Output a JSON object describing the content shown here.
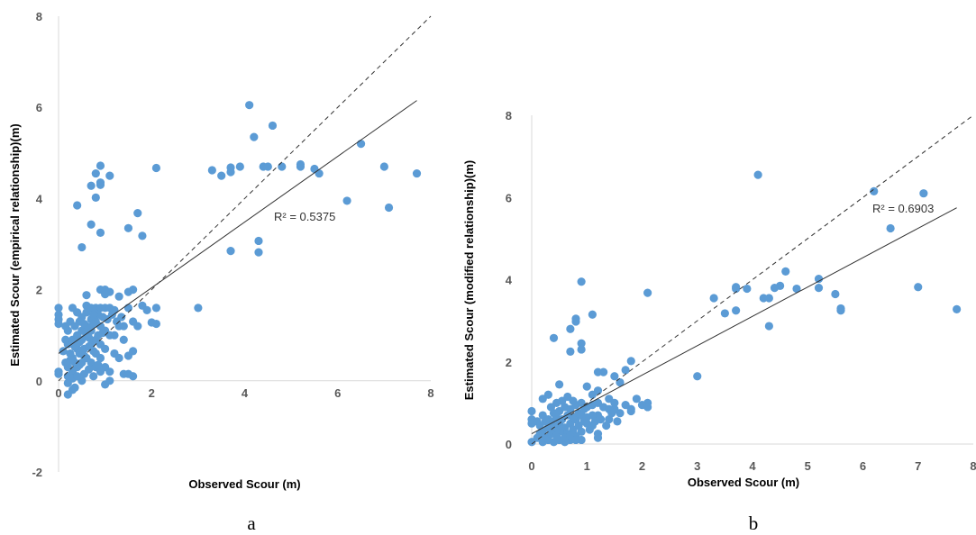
{
  "chart_data": [
    {
      "type": "scatter",
      "panel_label": "a",
      "xlabel": "Observed Scour (m)",
      "ylabel": "Estimated Scour (empirical relationship)(m)",
      "xlim": [
        0,
        8
      ],
      "ylim": [
        -2,
        8
      ],
      "xticks": [
        "0",
        "2",
        "4",
        "6",
        "8"
      ],
      "yticks": [
        "-2",
        "0",
        "2",
        "4",
        "6",
        "8"
      ],
      "annotation": "R² = 0.5375",
      "marker_color": "#5B9BD5",
      "lines": {
        "identity": [
          [
            0,
            0
          ],
          [
            8,
            8
          ]
        ],
        "trend": [
          [
            0,
            0.6
          ],
          [
            7.7,
            6.15
          ]
        ]
      },
      "points": [
        [
          4.1,
          6.05
        ],
        [
          4.6,
          5.6
        ],
        [
          4.2,
          5.35
        ],
        [
          6.5,
          5.2
        ],
        [
          0.9,
          4.72
        ],
        [
          2.1,
          4.67
        ],
        [
          3.3,
          4.62
        ],
        [
          3.5,
          4.5
        ],
        [
          3.7,
          4.58
        ],
        [
          3.7,
          4.68
        ],
        [
          3.9,
          4.7
        ],
        [
          4.4,
          4.7
        ],
        [
          4.5,
          4.7
        ],
        [
          4.8,
          4.7
        ],
        [
          5.2,
          4.7
        ],
        [
          5.2,
          4.75
        ],
        [
          5.5,
          4.65
        ],
        [
          5.6,
          4.55
        ],
        [
          7.0,
          4.7
        ],
        [
          7.7,
          4.55
        ],
        [
          0.8,
          4.55
        ],
        [
          1.1,
          4.5
        ],
        [
          0.9,
          4.35
        ],
        [
          0.9,
          4.3
        ],
        [
          0.7,
          4.28
        ],
        [
          0.8,
          4.02
        ],
        [
          6.2,
          3.95
        ],
        [
          0.4,
          3.85
        ],
        [
          7.1,
          3.8
        ],
        [
          1.7,
          3.68
        ],
        [
          0.7,
          3.43
        ],
        [
          1.5,
          3.35
        ],
        [
          0.9,
          3.25
        ],
        [
          1.8,
          3.18
        ],
        [
          4.3,
          3.07
        ],
        [
          0.5,
          2.93
        ],
        [
          3.7,
          2.85
        ],
        [
          4.3,
          2.82
        ],
        [
          0.9,
          2.0
        ],
        [
          1.0,
          2.0
        ],
        [
          1.1,
          1.95
        ],
        [
          1.5,
          1.95
        ],
        [
          1.6,
          2.0
        ],
        [
          1.0,
          1.9
        ],
        [
          0.6,
          1.88
        ],
        [
          1.3,
          1.85
        ],
        [
          1.8,
          1.65
        ],
        [
          1.9,
          1.55
        ],
        [
          2.1,
          1.6
        ],
        [
          3.0,
          1.6
        ],
        [
          1.5,
          1.6
        ],
        [
          1.6,
          1.3
        ],
        [
          1.7,
          1.2
        ],
        [
          2.0,
          1.28
        ],
        [
          2.1,
          1.25
        ],
        [
          1.3,
          1.2
        ],
        [
          1.2,
          1.0
        ],
        [
          1.4,
          0.9
        ],
        [
          1.5,
          0.55
        ],
        [
          1.6,
          0.65
        ],
        [
          1.6,
          0.1
        ],
        [
          1.4,
          0.15
        ],
        [
          1.5,
          0.15
        ],
        [
          1.0,
          -0.08
        ],
        [
          1.1,
          0.0
        ],
        [
          0.3,
          -0.2
        ],
        [
          0.2,
          -0.3
        ],
        [
          0.35,
          -0.15
        ],
        [
          0.5,
          0.0
        ],
        [
          0.0,
          0.2
        ],
        [
          0.0,
          0.15
        ],
        [
          0.0,
          1.6
        ],
        [
          0.0,
          1.45
        ],
        [
          0.0,
          1.35
        ],
        [
          0.0,
          1.25
        ],
        [
          0.1,
          0.65
        ],
        [
          0.2,
          1.1
        ],
        [
          0.3,
          1.6
        ],
        [
          0.4,
          1.5
        ],
        [
          0.5,
          1.4
        ],
        [
          0.6,
          1.65
        ],
        [
          0.7,
          1.6
        ],
        [
          0.8,
          1.6
        ],
        [
          0.9,
          1.6
        ],
        [
          1.0,
          1.6
        ],
        [
          1.1,
          1.6
        ],
        [
          1.2,
          1.55
        ],
        [
          0.6,
          1.5
        ],
        [
          0.7,
          1.35
        ],
        [
          0.8,
          1.3
        ],
        [
          0.9,
          1.2
        ],
        [
          1.0,
          1.1
        ],
        [
          1.1,
          1.0
        ],
        [
          0.2,
          0.3
        ],
        [
          0.3,
          0.5
        ],
        [
          0.4,
          0.7
        ],
        [
          0.5,
          0.9
        ],
        [
          0.6,
          1.0
        ],
        [
          0.7,
          0.8
        ],
        [
          0.8,
          0.6
        ],
        [
          0.9,
          0.5
        ],
        [
          1.0,
          0.3
        ],
        [
          1.1,
          0.2
        ],
        [
          0.2,
          0.8
        ],
        [
          0.3,
          0.9
        ],
        [
          0.4,
          1.0
        ],
        [
          0.5,
          1.1
        ],
        [
          0.6,
          1.2
        ],
        [
          0.7,
          1.1
        ],
        [
          0.8,
          0.9
        ],
        [
          0.9,
          0.8
        ],
        [
          1.0,
          0.7
        ],
        [
          0.2,
          0.1
        ],
        [
          0.3,
          0.2
        ],
        [
          0.4,
          0.3
        ],
        [
          0.5,
          0.4
        ],
        [
          0.6,
          0.5
        ],
        [
          0.7,
          0.4
        ],
        [
          0.8,
          0.3
        ],
        [
          0.9,
          0.2
        ],
        [
          0.25,
          0.6
        ],
        [
          0.35,
          0.4
        ],
        [
          0.45,
          0.6
        ],
        [
          0.55,
          0.7
        ],
        [
          0.65,
          0.75
        ],
        [
          0.75,
          0.65
        ],
        [
          0.85,
          1.0
        ],
        [
          0.95,
          1.4
        ],
        [
          0.25,
          1.3
        ],
        [
          0.35,
          1.2
        ],
        [
          0.45,
          1.3
        ],
        [
          0.55,
          1.25
        ],
        [
          0.65,
          1.15
        ],
        [
          0.75,
          1.25
        ],
        [
          0.85,
          1.45
        ],
        [
          0.95,
          1.05
        ],
        [
          0.15,
          0.9
        ],
        [
          0.15,
          0.4
        ],
        [
          0.2,
          -0.05
        ],
        [
          0.3,
          0.05
        ],
        [
          0.4,
          0.1
        ],
        [
          1.2,
          0.6
        ],
        [
          1.3,
          0.5
        ],
        [
          1.4,
          1.2
        ],
        [
          0.55,
          0.15
        ],
        [
          0.65,
          0.25
        ],
        [
          0.75,
          0.1
        ],
        [
          0.85,
          0.35
        ],
        [
          0.45,
          0.85
        ],
        [
          0.35,
          0.75
        ],
        [
          0.25,
          0.45
        ],
        [
          0.15,
          1.2
        ],
        [
          1.05,
          1.35
        ],
        [
          1.15,
          1.45
        ],
        [
          1.25,
          1.3
        ],
        [
          1.35,
          1.4
        ],
        [
          0.55,
          0.55
        ],
        [
          0.45,
          0.35
        ],
        [
          0.65,
          0.95
        ],
        [
          0.75,
          1.45
        ]
      ]
    },
    {
      "type": "scatter",
      "panel_label": "b",
      "xlabel": "Observed Scour (m)",
      "ylabel": "Estimated Scour (modified relationship)(m)",
      "xlim": [
        0,
        8
      ],
      "ylim": [
        0,
        8
      ],
      "xticks": [
        "0",
        "1",
        "2",
        "3",
        "4",
        "5",
        "6",
        "7",
        "8"
      ],
      "yticks": [
        "0",
        "2",
        "4",
        "6",
        "8"
      ],
      "annotation": "R² = 0.6903",
      "marker_color": "#5B9BD5",
      "lines": {
        "identity": [
          [
            0,
            0
          ],
          [
            8,
            8
          ]
        ],
        "trend": [
          [
            0,
            0.25
          ],
          [
            7.7,
            5.75
          ]
        ]
      },
      "points": [
        [
          4.1,
          6.55
        ],
        [
          6.2,
          6.15
        ],
        [
          7.1,
          6.1
        ],
        [
          6.5,
          5.25
        ],
        [
          4.6,
          4.2
        ],
        [
          5.2,
          4.02
        ],
        [
          4.5,
          3.85
        ],
        [
          4.4,
          3.8
        ],
        [
          3.9,
          3.78
        ],
        [
          3.7,
          3.78
        ],
        [
          3.7,
          3.82
        ],
        [
          4.8,
          3.78
        ],
        [
          5.2,
          3.8
        ],
        [
          7.0,
          3.82
        ],
        [
          0.9,
          3.95
        ],
        [
          2.1,
          3.68
        ],
        [
          5.5,
          3.65
        ],
        [
          3.3,
          3.55
        ],
        [
          4.2,
          3.55
        ],
        [
          4.3,
          3.55
        ],
        [
          3.7,
          3.25
        ],
        [
          3.5,
          3.18
        ],
        [
          5.6,
          3.25
        ],
        [
          5.6,
          3.3
        ],
        [
          7.7,
          3.28
        ],
        [
          1.1,
          3.15
        ],
        [
          0.8,
          3.05
        ],
        [
          0.8,
          2.98
        ],
        [
          4.3,
          2.87
        ],
        [
          0.7,
          2.8
        ],
        [
          0.4,
          2.58
        ],
        [
          0.9,
          2.45
        ],
        [
          0.9,
          2.3
        ],
        [
          0.7,
          2.25
        ],
        [
          1.8,
          2.02
        ],
        [
          1.7,
          1.8
        ],
        [
          3.0,
          1.65
        ],
        [
          1.5,
          1.65
        ],
        [
          1.3,
          1.75
        ],
        [
          1.2,
          1.75
        ],
        [
          0.5,
          1.45
        ],
        [
          1.6,
          1.5
        ],
        [
          1.0,
          1.4
        ],
        [
          1.2,
          1.3
        ],
        [
          0.3,
          1.2
        ],
        [
          0.2,
          1.1
        ],
        [
          1.1,
          1.2
        ],
        [
          1.4,
          1.1
        ],
        [
          1.9,
          1.1
        ],
        [
          2.1,
          1.0
        ],
        [
          2.0,
          0.95
        ],
        [
          2.1,
          0.9
        ],
        [
          1.8,
          0.85
        ],
        [
          1.6,
          0.75
        ],
        [
          1.7,
          0.95
        ],
        [
          1.8,
          0.8
        ],
        [
          1.5,
          0.85
        ],
        [
          1.4,
          0.6
        ],
        [
          1.2,
          0.7
        ],
        [
          1.1,
          0.45
        ],
        [
          1.2,
          0.25
        ],
        [
          1.2,
          0.15
        ],
        [
          1.0,
          0.5
        ],
        [
          0.9,
          0.3
        ],
        [
          0.9,
          0.1
        ],
        [
          0.8,
          0.2
        ],
        [
          0.7,
          0.1
        ],
        [
          0.6,
          0.05
        ],
        [
          0.5,
          0.1
        ],
        [
          0.4,
          0.05
        ],
        [
          0.3,
          0.1
        ],
        [
          0.2,
          0.05
        ],
        [
          0.0,
          0.05
        ],
        [
          0.0,
          0.8
        ],
        [
          0.0,
          0.6
        ],
        [
          0.0,
          0.5
        ],
        [
          0.1,
          0.55
        ],
        [
          0.2,
          0.7
        ],
        [
          0.3,
          0.6
        ],
        [
          0.4,
          0.75
        ],
        [
          0.5,
          0.8
        ],
        [
          0.6,
          0.9
        ],
        [
          0.7,
          0.85
        ],
        [
          0.8,
          0.95
        ],
        [
          0.9,
          1.0
        ],
        [
          1.0,
          0.9
        ],
        [
          1.1,
          0.95
        ],
        [
          1.2,
          1.0
        ],
        [
          0.2,
          0.3
        ],
        [
          0.3,
          0.4
        ],
        [
          0.4,
          0.3
        ],
        [
          0.5,
          0.5
        ],
        [
          0.6,
          0.4
        ],
        [
          0.7,
          0.5
        ],
        [
          0.8,
          0.6
        ],
        [
          0.9,
          0.7
        ],
        [
          1.0,
          0.65
        ],
        [
          1.1,
          0.7
        ],
        [
          1.3,
          0.9
        ],
        [
          1.4,
          0.85
        ],
        [
          1.5,
          1.0
        ],
        [
          0.25,
          0.15
        ],
        [
          0.35,
          0.25
        ],
        [
          0.45,
          0.2
        ],
        [
          0.55,
          0.3
        ],
        [
          0.65,
          0.25
        ],
        [
          0.75,
          0.35
        ],
        [
          0.85,
          0.45
        ],
        [
          0.95,
          0.55
        ],
        [
          0.35,
          0.55
        ],
        [
          0.45,
          0.65
        ],
        [
          0.55,
          0.6
        ],
        [
          0.65,
          0.7
        ],
        [
          0.75,
          0.65
        ],
        [
          0.85,
          0.75
        ],
        [
          0.95,
          0.85
        ],
        [
          0.15,
          0.45
        ],
        [
          0.25,
          0.55
        ],
        [
          0.55,
          1.05
        ],
        [
          0.65,
          1.15
        ],
        [
          0.75,
          1.05
        ],
        [
          0.45,
          1.0
        ],
        [
          0.35,
          0.9
        ],
        [
          0.15,
          0.25
        ],
        [
          0.1,
          0.15
        ],
        [
          1.05,
          0.35
        ],
        [
          1.15,
          0.55
        ],
        [
          1.25,
          0.6
        ],
        [
          1.35,
          0.45
        ],
        [
          1.45,
          0.75
        ],
        [
          1.55,
          0.55
        ],
        [
          0.6,
          0.15
        ],
        [
          0.7,
          0.2
        ],
        [
          0.8,
          0.1
        ],
        [
          0.5,
          0.35
        ],
        [
          0.4,
          0.45
        ]
      ]
    }
  ]
}
